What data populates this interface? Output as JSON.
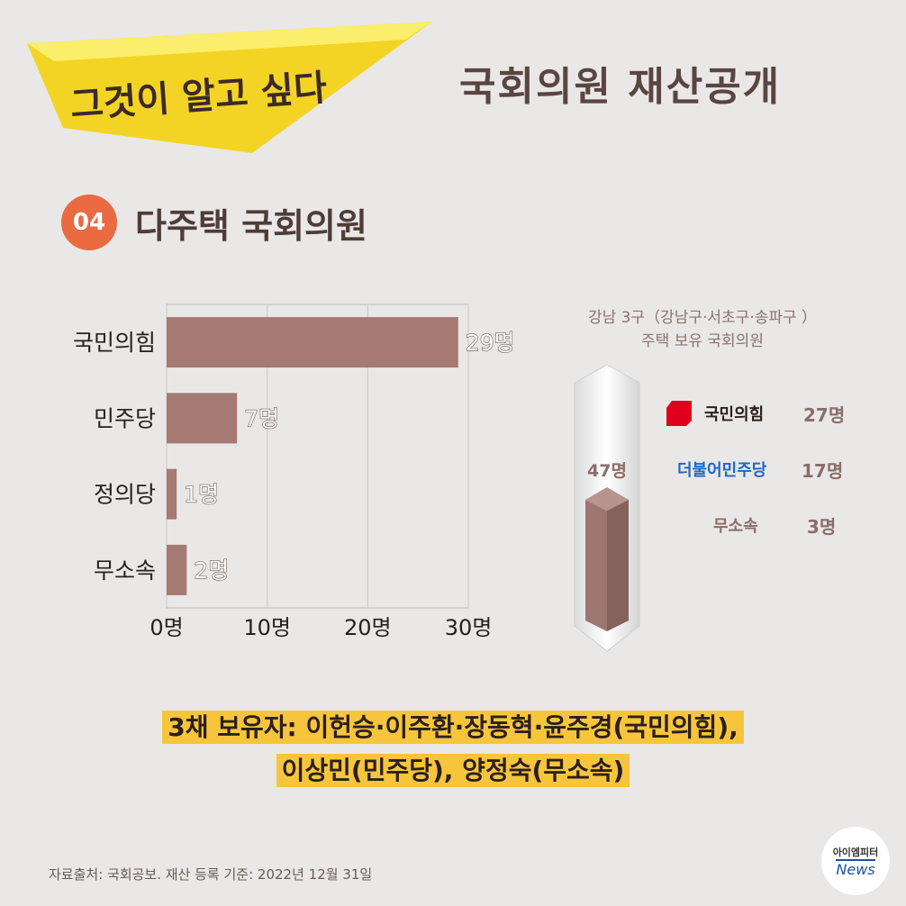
{
  "banner": {
    "text": "그것이 알고 싶다"
  },
  "header": {
    "title": "국회의원 재산공개"
  },
  "section": {
    "number": "04",
    "title": "다주택 국회의원"
  },
  "chart_data": {
    "type": "bar",
    "orientation": "horizontal",
    "categories": [
      "국민의힘",
      "민주당",
      "정의당",
      "무소속"
    ],
    "values": [
      29,
      7,
      1,
      2
    ],
    "value_labels": [
      "29명",
      "7명",
      "1명",
      "2명"
    ],
    "xlim": [
      0,
      30
    ],
    "x_ticks": [
      0,
      10,
      20,
      30
    ],
    "x_tick_labels": [
      "0명",
      "10명",
      "20명",
      "30명"
    ],
    "grid": true,
    "bar_color": "#a47a73"
  },
  "side": {
    "note_line1": "강남 3구（강남구·서초구·송파구 ）",
    "note_line2": "주택 보유 국회의원",
    "total": "47명",
    "parties": [
      {
        "name": "국민의힘",
        "count": "27명",
        "color": "#e0001c",
        "icon": "ppp-logo-icon"
      },
      {
        "name": "더불어민주당",
        "count": "17명",
        "color": "#1f66c6"
      },
      {
        "name": "무소속",
        "count": "3명",
        "color": "#8a6d69"
      }
    ]
  },
  "footer": {
    "line1": "3채 보유자: 이헌승·이주환·장동혁·윤주경(국민의힘),",
    "line2": "이상민(민주당), 양정숙(무소속)"
  },
  "source": "자료출처: 국회공보. 재산 등록 기준: 2022년 12월 31일",
  "logo": {
    "korean": "아이엠피터",
    "english": "News"
  },
  "colors": {
    "accent": "#ea6a42",
    "highlight": "#f7c53c",
    "banner": "#f5de2a"
  }
}
